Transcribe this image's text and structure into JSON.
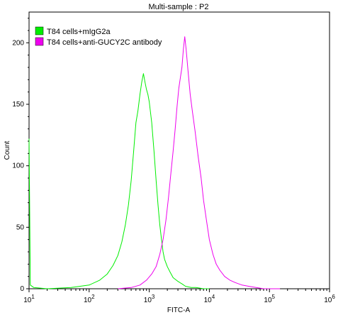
{
  "chart_data": {
    "type": "line",
    "title": "Multi-sample : P2",
    "xlabel": "FITC-A",
    "ylabel": "Count",
    "x_scale": "log",
    "xlim": [
      10,
      1000000
    ],
    "ylim": [
      0,
      225
    ],
    "x_ticks": [
      {
        "value": 10,
        "base": "10",
        "exp": "1"
      },
      {
        "value": 100,
        "base": "10",
        "exp": "2"
      },
      {
        "value": 1000,
        "base": "10",
        "exp": "3"
      },
      {
        "value": 10000,
        "base": "10",
        "exp": "4"
      },
      {
        "value": 100000,
        "base": "10",
        "exp": "5"
      },
      {
        "value": 1000000,
        "base": "10",
        "exp": "6"
      }
    ],
    "y_ticks": [
      0,
      50,
      100,
      150,
      200
    ],
    "legend_position": "top-left",
    "series": [
      {
        "name": "T84 cells+mIgG2a",
        "color": "#00ee00",
        "points": [
          [
            10,
            122
          ],
          [
            10.5,
            3
          ],
          [
            12,
            1
          ],
          [
            20,
            0
          ],
          [
            50,
            1
          ],
          [
            100,
            3
          ],
          [
            150,
            7
          ],
          [
            200,
            12
          ],
          [
            250,
            19
          ],
          [
            300,
            27
          ],
          [
            350,
            38
          ],
          [
            400,
            52
          ],
          [
            450,
            68
          ],
          [
            500,
            88
          ],
          [
            550,
            112
          ],
          [
            600,
            135
          ],
          [
            650,
            145
          ],
          [
            700,
            158
          ],
          [
            750,
            168
          ],
          [
            800,
            175
          ],
          [
            850,
            168
          ],
          [
            900,
            162
          ],
          [
            950,
            158
          ],
          [
            1000,
            152
          ],
          [
            1100,
            135
          ],
          [
            1200,
            112
          ],
          [
            1300,
            88
          ],
          [
            1400,
            68
          ],
          [
            1500,
            52
          ],
          [
            1600,
            40
          ],
          [
            1700,
            30
          ],
          [
            1800,
            24
          ],
          [
            2000,
            18
          ],
          [
            2200,
            14
          ],
          [
            2500,
            9
          ],
          [
            3000,
            6
          ],
          [
            3500,
            4
          ],
          [
            4000,
            2
          ],
          [
            5000,
            1
          ],
          [
            6000,
            1
          ],
          [
            8000,
            0
          ],
          [
            10000,
            0
          ]
        ]
      },
      {
        "name": "T84 cells+anti-GUCY2C antibody",
        "color": "#ee00ee",
        "points": [
          [
            300,
            0
          ],
          [
            500,
            1
          ],
          [
            700,
            3
          ],
          [
            900,
            7
          ],
          [
            1100,
            12
          ],
          [
            1300,
            18
          ],
          [
            1500,
            28
          ],
          [
            1700,
            40
          ],
          [
            1900,
            56
          ],
          [
            2100,
            75
          ],
          [
            2300,
            95
          ],
          [
            2500,
            112
          ],
          [
            2700,
            130
          ],
          [
            2900,
            148
          ],
          [
            3100,
            163
          ],
          [
            3300,
            172
          ],
          [
            3500,
            180
          ],
          [
            3700,
            195
          ],
          [
            3900,
            205
          ],
          [
            4100,
            195
          ],
          [
            4400,
            178
          ],
          [
            4800,
            158
          ],
          [
            5200,
            145
          ],
          [
            5800,
            128
          ],
          [
            6500,
            108
          ],
          [
            7300,
            90
          ],
          [
            8000,
            72
          ],
          [
            9000,
            55
          ],
          [
            10000,
            40
          ],
          [
            11500,
            28
          ],
          [
            13000,
            20
          ],
          [
            15000,
            15
          ],
          [
            18000,
            10
          ],
          [
            22000,
            7
          ],
          [
            27000,
            5
          ],
          [
            35000,
            3
          ],
          [
            45000,
            2
          ],
          [
            60000,
            1
          ],
          [
            80000,
            0
          ],
          [
            100000,
            0
          ],
          [
            150000,
            0
          ]
        ]
      }
    ]
  }
}
